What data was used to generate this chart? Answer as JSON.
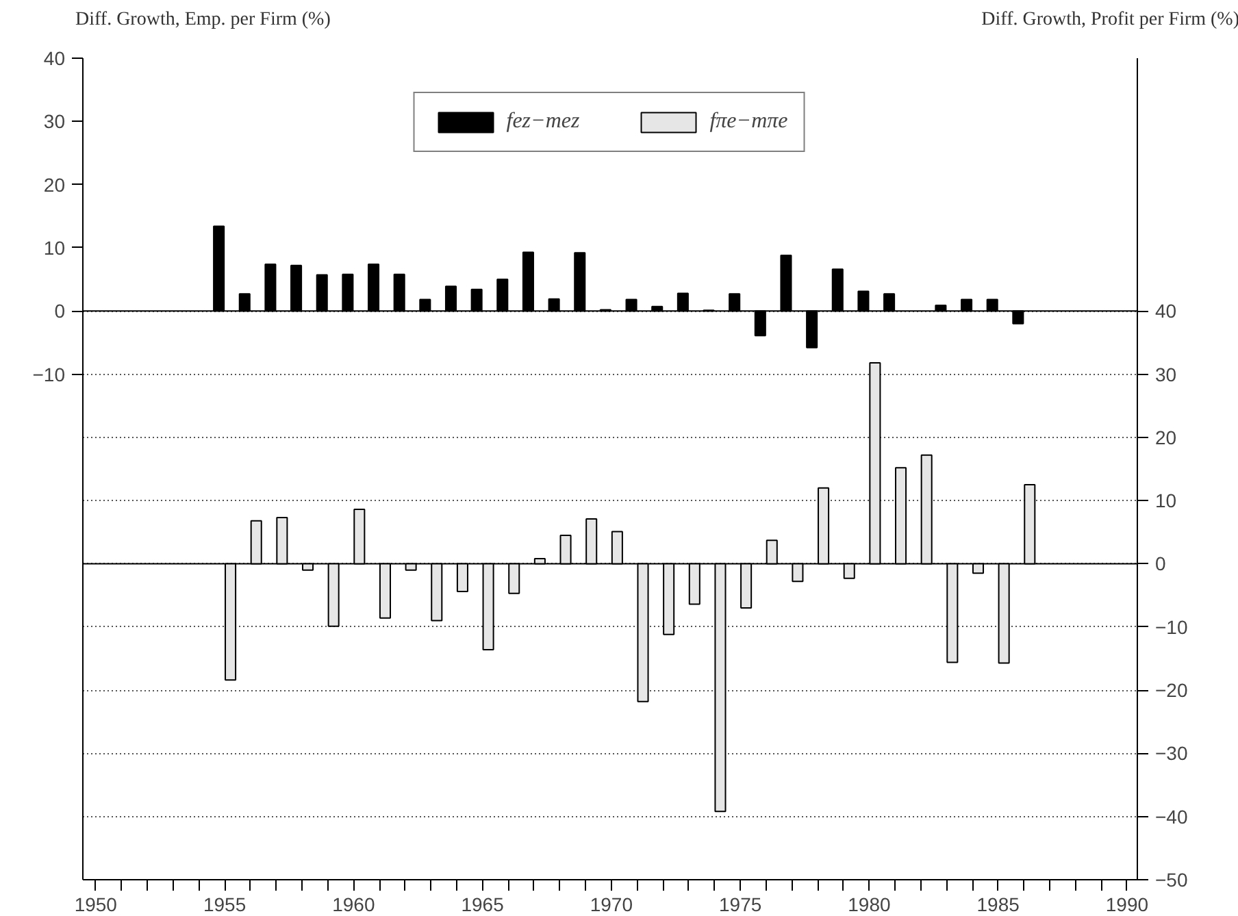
{
  "chart_data": {
    "type": "bar",
    "ylabel": "Diff. Growth, Emp. per Firm (%)",
    "y2label": "Diff. Growth, Profit per Firm (%)",
    "x": [
      1955,
      1956,
      1957,
      1958,
      1959,
      1960,
      1961,
      1962,
      1963,
      1964,
      1965,
      1966,
      1967,
      1968,
      1969,
      1970,
      1971,
      1972,
      1973,
      1974,
      1975,
      1976,
      1977,
      1978,
      1979,
      1980,
      1981,
      1982,
      1983,
      1984,
      1985,
      1986
    ],
    "series": [
      {
        "name": "fez−mez",
        "color": "#000000",
        "values": [
          13.4,
          2.7,
          7.4,
          7.2,
          5.7,
          5.8,
          7.4,
          5.8,
          1.8,
          3.9,
          3.4,
          5.0,
          9.3,
          1.9,
          9.2,
          0.2,
          1.8,
          0.7,
          2.8,
          0.1,
          2.7,
          -3.9,
          8.8,
          -5.8,
          6.6,
          3.1,
          2.7,
          null,
          0.9,
          1.8,
          1.8,
          -2.0
        ]
      },
      {
        "name": "fπe−mπe",
        "color": "#e6e6e6",
        "axis": "y2",
        "values": [
          -18.4,
          6.8,
          7.3,
          -1.0,
          -9.9,
          8.6,
          -8.6,
          -1.0,
          -9.0,
          -4.4,
          -13.6,
          -4.7,
          0.8,
          4.5,
          7.1,
          5.1,
          -21.8,
          -11.2,
          -6.4,
          -39.2,
          -7.0,
          3.7,
          -2.8,
          12.0,
          -2.3,
          31.8,
          15.2,
          17.2,
          -15.6,
          -1.5,
          -15.7,
          12.5
        ]
      }
    ],
    "xlim": [
      1949.5,
      1990.4
    ],
    "xticks": [
      1950,
      {
        "value": 1951,
        "label": null
      },
      {
        "value": 1952,
        "label": null
      },
      {
        "value": 1953,
        "label": null
      },
      {
        "value": 1954,
        "label": null
      },
      1955,
      {
        "value": 1956,
        "label": null
      },
      {
        "value": 1957,
        "label": null
      },
      {
        "value": 1958,
        "label": null
      },
      {
        "value": 1959,
        "label": null
      },
      1960,
      {
        "value": 1961,
        "label": null
      },
      {
        "value": 1962,
        "label": null
      },
      {
        "value": 1963,
        "label": null
      },
      {
        "value": 1964,
        "label": null
      },
      1965,
      {
        "value": 1966,
        "label": null
      },
      {
        "value": 1967,
        "label": null
      },
      {
        "value": 1968,
        "label": null
      },
      {
        "value": 1969,
        "label": null
      },
      1970,
      {
        "value": 1971,
        "label": null
      },
      {
        "value": 1972,
        "label": null
      },
      {
        "value": 1973,
        "label": null
      },
      {
        "value": 1974,
        "label": null
      },
      1975,
      {
        "value": 1976,
        "label": null
      },
      {
        "value": 1977,
        "label": null
      },
      {
        "value": 1978,
        "label": null
      },
      {
        "value": 1979,
        "label": null
      },
      1980,
      {
        "value": 1981,
        "label": null
      },
      {
        "value": 1982,
        "label": null
      },
      {
        "value": 1983,
        "label": null
      },
      {
        "value": 1984,
        "label": null
      },
      1985,
      {
        "value": 1986,
        "label": null
      },
      {
        "value": 1987,
        "label": null
      },
      {
        "value": 1988,
        "label": null
      },
      {
        "value": 1989,
        "label": null
      },
      1990
    ],
    "ylim": [
      -90,
      40
    ],
    "yticks": [
      -10,
      0,
      10,
      20,
      30,
      40
    ],
    "y2lim": [
      -50,
      80
    ],
    "y2ticks": [
      -50,
      -40,
      -30,
      -20,
      -10,
      0,
      10,
      20,
      30,
      40
    ],
    "grid": "y",
    "legend": "top"
  }
}
